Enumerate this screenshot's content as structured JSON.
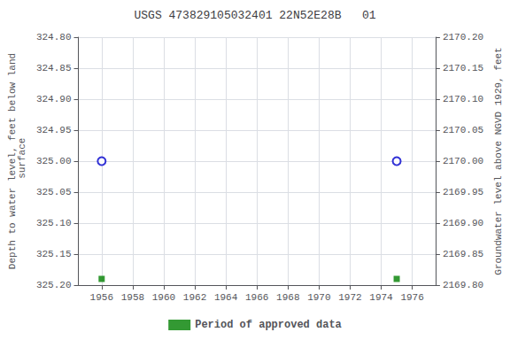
{
  "chart_data": {
    "type": "scatter",
    "title": "USGS 473829105032401 22N52E28B   01",
    "y_label": "Depth to water level, feet below land\n surface",
    "y2_label": "Groundwater level above NGVD 1929, feet",
    "x": [
      1956,
      1975
    ],
    "xlim": [
      1954.5,
      1977.5
    ],
    "xticks": [
      1956,
      1958,
      1960,
      1962,
      1964,
      1966,
      1968,
      1970,
      1972,
      1974,
      1976
    ],
    "ylim": [
      325.2,
      324.8
    ],
    "yticks": [
      {
        "value": 324.8,
        "label": "324.80"
      },
      {
        "value": 324.85,
        "label": "324.85"
      },
      {
        "value": 324.9,
        "label": "324.90"
      },
      {
        "value": 324.95,
        "label": "324.95"
      },
      {
        "value": 325.0,
        "label": "325.00"
      },
      {
        "value": 325.05,
        "label": "325.05"
      },
      {
        "value": 325.1,
        "label": "325.10"
      },
      {
        "value": 325.15,
        "label": "325.15"
      },
      {
        "value": 325.2,
        "label": "325.20"
      }
    ],
    "y2lim": [
      2169.8,
      2170.2
    ],
    "y2ticks": [
      {
        "value": 2170.2,
        "label": "2170.20"
      },
      {
        "value": 2170.15,
        "label": "2170.15"
      },
      {
        "value": 2170.1,
        "label": "2170.10"
      },
      {
        "value": 2170.05,
        "label": "2170.05"
      },
      {
        "value": 2170.0,
        "label": "2170.00"
      },
      {
        "value": 2169.95,
        "label": "2169.95"
      },
      {
        "value": 2169.9,
        "label": "2169.90"
      },
      {
        "value": 2169.85,
        "label": "2169.85"
      },
      {
        "value": 2169.8,
        "label": "2169.80"
      }
    ],
    "grid": true,
    "legend": "bottom",
    "series": [
      {
        "color": "#0000cc",
        "marker": "circle",
        "values": [
          325.0,
          325.0
        ]
      },
      {
        "name": "Period of approved data",
        "color": "#008000",
        "marker": "square",
        "values": [
          325.19,
          325.19
        ]
      }
    ]
  }
}
